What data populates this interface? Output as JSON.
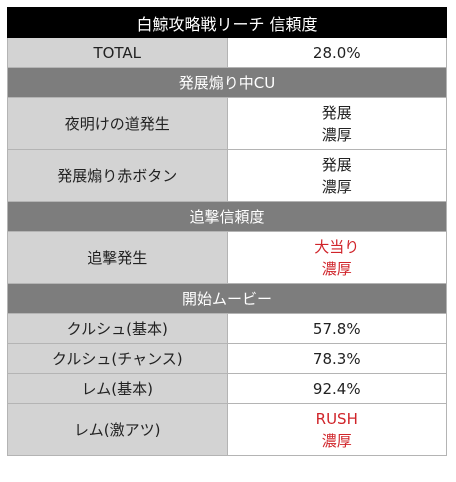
{
  "title": "白鯨攻略戦リーチ 信頼度",
  "total": {
    "label": "TOTAL",
    "value": "28.0%"
  },
  "sections": {
    "cu": {
      "header": "発展煽り中CU",
      "rows": [
        {
          "label": "夜明けの道発生",
          "line1": "発展",
          "line2": "濃厚"
        },
        {
          "label": "発展煽り赤ボタン",
          "line1": "発展",
          "line2": "濃厚"
        }
      ]
    },
    "pursuit": {
      "header": "追撃信頼度",
      "rows": [
        {
          "label": "追撃発生",
          "line1": "大当り",
          "line2": "濃厚"
        }
      ]
    },
    "movie": {
      "header": "開始ムービー",
      "rows": [
        {
          "label": "クルシュ(基本)",
          "value": "57.8%"
        },
        {
          "label": "クルシュ(チャンス)",
          "value": "78.3%"
        },
        {
          "label": "レム(基本)",
          "value": "92.4%"
        },
        {
          "label": "レム(激アツ)",
          "line1": "RUSH",
          "line2": "濃厚"
        }
      ]
    }
  },
  "colors": {
    "title_bg": "#000000",
    "section_bg": "#7d7d7d",
    "label_bg": "#d3d3d3",
    "accent_red": "#d0242a"
  }
}
